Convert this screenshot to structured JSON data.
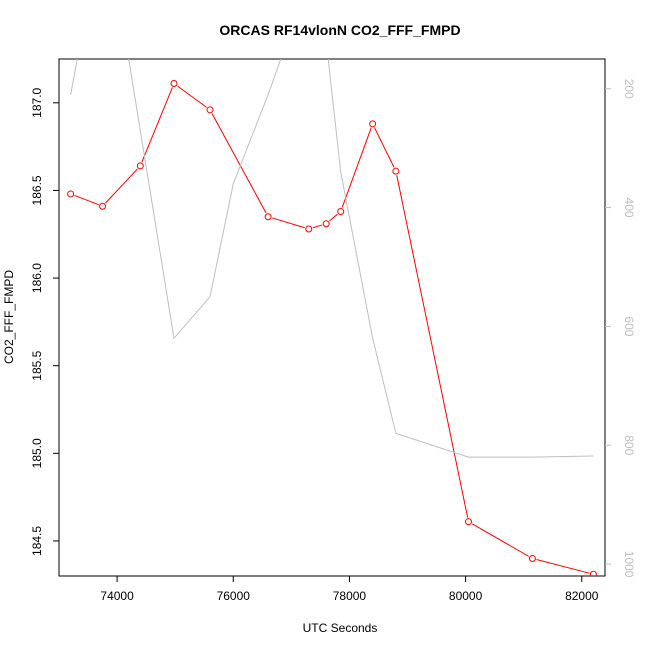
{
  "chart_data": {
    "type": "line",
    "title": "ORCAS RF14vlonN CO2_FFF_FMPD",
    "xlabel": "UTC Seconds",
    "ylabel": "CO2_FFF_FMPD",
    "xlim": [
      73000,
      82400
    ],
    "ylim": [
      184.3,
      187.25
    ],
    "y2lim": [
      1020,
      150
    ],
    "xticks": [
      74000,
      76000,
      78000,
      80000,
      82000
    ],
    "yticks": [
      184.5,
      185.0,
      185.5,
      186.0,
      186.5,
      187.0
    ],
    "y2ticks": [
      200,
      400,
      600,
      800,
      1000
    ],
    "grid": false,
    "series": [
      {
        "axis": "left",
        "color": "#ff0000",
        "marker": "open-circle",
        "x": [
          73200,
          73750,
          74400,
          74980,
          75600,
          76600,
          77300,
          77600,
          77850,
          78400,
          78800,
          80050,
          81150,
          82200
        ],
        "y": [
          186.48,
          186.41,
          186.64,
          187.11,
          186.96,
          186.35,
          186.28,
          186.31,
          186.38,
          186.88,
          186.61,
          184.61,
          184.4,
          184.31
        ]
      },
      {
        "axis": "right",
        "color": "#bebebe",
        "marker": "none",
        "x": [
          73200,
          73450,
          73750,
          74100,
          74980,
          75600,
          76000,
          76600,
          77000,
          77300,
          77600,
          77850,
          78400,
          78800,
          80050,
          81150,
          82200
        ],
        "y": [
          210,
          80,
          20,
          90,
          620,
          550,
          360,
          210,
          100,
          60,
          120,
          340,
          620,
          780,
          820,
          820,
          818
        ]
      }
    ]
  }
}
